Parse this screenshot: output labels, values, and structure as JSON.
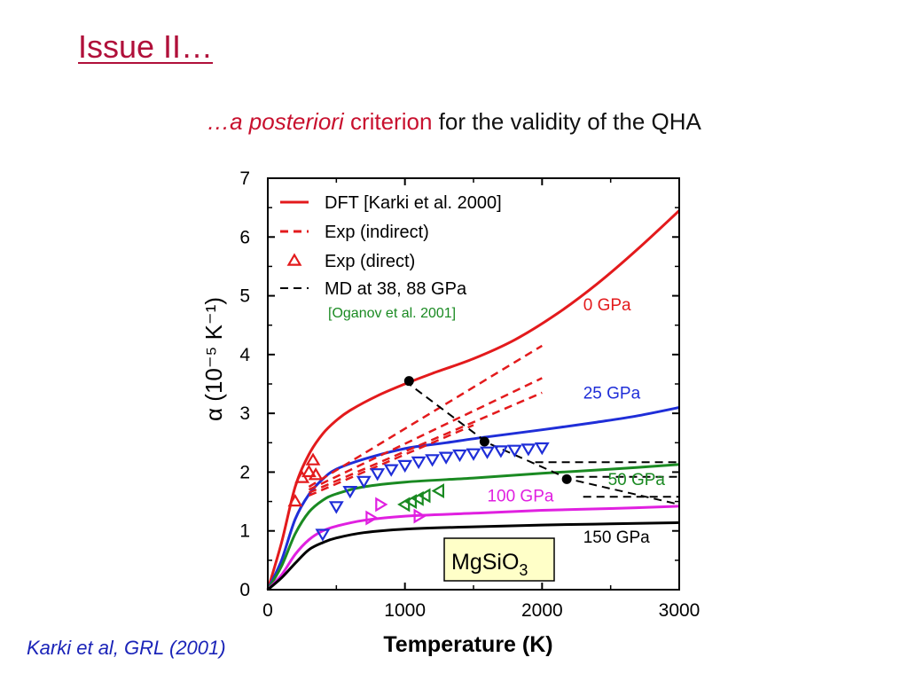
{
  "slide": {
    "title": "Issue II…",
    "subtitle_italic": "…a posteriori",
    "subtitle_red": " criterion",
    "subtitle_black": " for the validity of the QHA",
    "citation": "Karki et al, GRL (2001)"
  },
  "chart_data": {
    "type": "line",
    "xlabel": "Temperature (K)",
    "ylabel": "α (10⁻⁵ K⁻¹)",
    "xlim": [
      0,
      3000
    ],
    "ylim": [
      0,
      7
    ],
    "xticks": [
      0,
      1000,
      2000,
      3000
    ],
    "yticks": [
      0,
      1,
      2,
      3,
      4,
      5,
      6,
      7
    ],
    "grid": false,
    "legend_position": "top-left",
    "legend": [
      {
        "label": "DFT [Karki et al. 2000]",
        "style": "solid",
        "color": "#e31a1c"
      },
      {
        "label": "Exp (indirect)",
        "style": "dashed",
        "color": "#e31a1c"
      },
      {
        "label": "Exp (direct)",
        "style": "triangle",
        "color": "#e31a1c"
      },
      {
        "label": "MD at 38, 88 GPa",
        "style": "dashed",
        "color": "#000000"
      }
    ],
    "legend_note": "[Oganov et al. 2001]",
    "inset_label": "MgSiO",
    "inset_label_sub": "3",
    "series": [
      {
        "name": "0 GPa",
        "color": "#e31a1c",
        "x": [
          0,
          100,
          200,
          300,
          400,
          500,
          600,
          800,
          1000,
          1200,
          1500,
          1800,
          2100,
          2400,
          2700,
          3000
        ],
        "y": [
          0,
          0.8,
          1.75,
          2.3,
          2.65,
          2.88,
          3.05,
          3.3,
          3.5,
          3.68,
          3.93,
          4.25,
          4.68,
          5.2,
          5.8,
          6.45
        ]
      },
      {
        "name": "25 GPa",
        "color": "#1f2ed8",
        "x": [
          0,
          100,
          200,
          300,
          400,
          500,
          700,
          1000,
          1300,
          1600,
          2000,
          2400,
          2700,
          3000
        ],
        "y": [
          0,
          0.5,
          1.2,
          1.62,
          1.88,
          2.05,
          2.22,
          2.4,
          2.5,
          2.6,
          2.72,
          2.85,
          2.96,
          3.1
        ]
      },
      {
        "name": "50 GPa",
        "color": "#1a8a22",
        "x": [
          0,
          100,
          200,
          300,
          400,
          500,
          700,
          1000,
          1500,
          2000,
          2500,
          3000
        ],
        "y": [
          0,
          0.4,
          0.95,
          1.32,
          1.52,
          1.63,
          1.75,
          1.83,
          1.9,
          1.98,
          2.05,
          2.13
        ]
      },
      {
        "name": "100 GPa",
        "color": "#e020e0",
        "x": [
          0,
          100,
          200,
          300,
          400,
          500,
          700,
          1000,
          1500,
          2000,
          2500,
          3000
        ],
        "y": [
          0,
          0.25,
          0.6,
          0.85,
          1.0,
          1.08,
          1.18,
          1.25,
          1.3,
          1.35,
          1.38,
          1.42
        ]
      },
      {
        "name": "150 GPa",
        "color": "#000000",
        "x": [
          0,
          100,
          200,
          300,
          400,
          500,
          700,
          1000,
          1500,
          2000,
          2500,
          3000
        ],
        "y": [
          0,
          0.2,
          0.45,
          0.68,
          0.8,
          0.88,
          0.97,
          1.03,
          1.07,
          1.1,
          1.12,
          1.14
        ]
      }
    ],
    "exp_indirect": [
      {
        "x": [
          300,
          2000
        ],
        "y": [
          1.75,
          4.15
        ]
      },
      {
        "x": [
          300,
          2000
        ],
        "y": [
          1.7,
          3.6
        ]
      },
      {
        "x": [
          300,
          2000
        ],
        "y": [
          1.65,
          3.35
        ]
      },
      {
        "x": [
          300,
          1500
        ],
        "y": [
          1.6,
          2.8
        ]
      }
    ],
    "md_lines": [
      {
        "x": [
          1000,
          1600,
          2200,
          3000
        ],
        "y": [
          3.55,
          2.5,
          1.88,
          1.45
        ]
      },
      {
        "x": [
          1950,
          3000
        ],
        "y": [
          2.17,
          2.17
        ]
      },
      {
        "x": [
          2150,
          3000
        ],
        "y": [
          1.92,
          1.92
        ]
      },
      {
        "x": [
          2300,
          3000
        ],
        "y": [
          1.58,
          1.58
        ]
      }
    ],
    "md_points": {
      "x": [
        1030,
        1580,
        2180
      ],
      "y": [
        3.55,
        2.52,
        1.88
      ]
    },
    "exp_direct": [
      {
        "color": "#e31a1c",
        "marker": "up",
        "x": [
          200,
          250,
          300,
          330,
          350
        ],
        "y": [
          1.5,
          1.9,
          2.0,
          2.2,
          1.95
        ]
      },
      {
        "color": "#1f2ed8",
        "marker": "down",
        "x": [
          400,
          500,
          600,
          700,
          800,
          900,
          1000,
          1100,
          1200,
          1300,
          1400,
          1500,
          1600,
          1700,
          1800,
          1900,
          2000
        ],
        "y": [
          0.95,
          1.42,
          1.68,
          1.85,
          1.98,
          2.05,
          2.12,
          2.18,
          2.22,
          2.26,
          2.3,
          2.32,
          2.35,
          2.37,
          2.38,
          2.4,
          2.42
        ]
      },
      {
        "color": "#1a8a22",
        "marker": "left",
        "x": [
          1000,
          1050,
          1100,
          1150,
          1250
        ],
        "y": [
          1.45,
          1.5,
          1.55,
          1.6,
          1.68
        ]
      },
      {
        "color": "#e020e0",
        "marker": "right",
        "x": [
          750,
          820,
          1100
        ],
        "y": [
          1.22,
          1.45,
          1.25
        ]
      }
    ],
    "curve_labels": [
      {
        "text": "0 GPa",
        "color": "#e31a1c",
        "x": 2300,
        "y": 4.75
      },
      {
        "text": "25 GPa",
        "color": "#1f2ed8",
        "x": 2300,
        "y": 3.25
      },
      {
        "text": "50 GPa",
        "color": "#1a8a22",
        "x": 2480,
        "y": 1.78
      },
      {
        "text": "100 GPa",
        "color": "#e020e0",
        "x": 1600,
        "y": 1.5
      },
      {
        "text": "150 GPa",
        "color": "#000000",
        "x": 2300,
        "y": 0.8
      }
    ]
  }
}
